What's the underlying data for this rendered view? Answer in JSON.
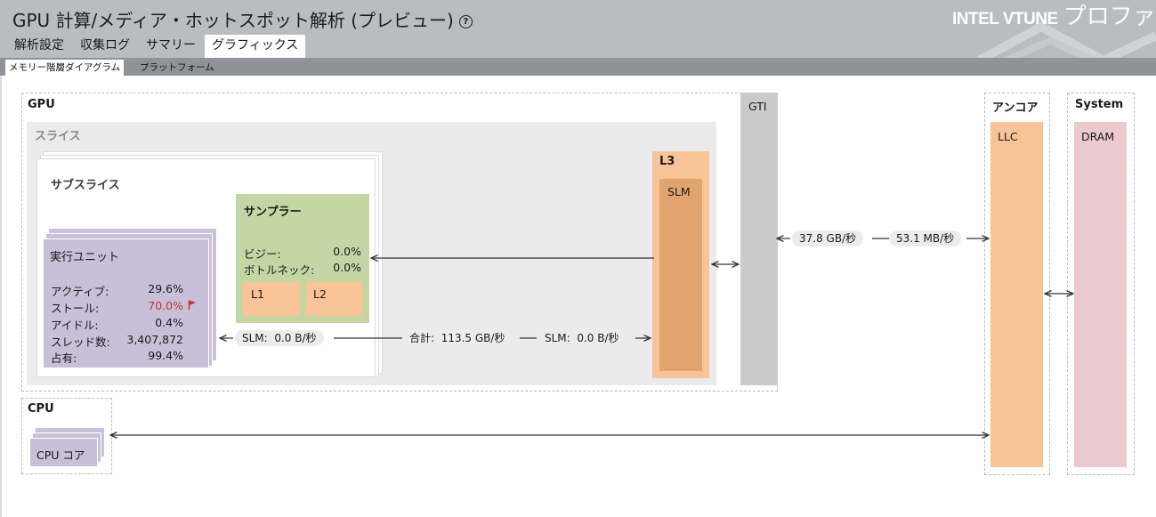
{
  "header": {
    "title": "GPU 計算/メディア・ホットスポット解析 (プレビュー)",
    "brand_main": "INTEL VTUNE",
    "brand_sub": "プロファイ",
    "tabs": [
      {
        "label": "解析設定",
        "active": false
      },
      {
        "label": "収集ログ",
        "active": false
      },
      {
        "label": "サマリー",
        "active": false
      },
      {
        "label": "グラフィックス",
        "active": true
      }
    ],
    "subtabs": [
      {
        "label": "メモリー階層ダイアグラム",
        "active": true
      },
      {
        "label": "プラットフォーム",
        "active": false
      }
    ]
  },
  "diagram": {
    "gpu_label": "GPU",
    "slice_label": "スライス",
    "subslice_label": "サブスライス",
    "eu": {
      "title": "実行ユニット",
      "rows": [
        {
          "label": "アクティブ:",
          "value": "29.6%"
        },
        {
          "label": "ストール:",
          "value": "70.0%",
          "flag": true
        },
        {
          "label": "アイドル:",
          "value": "0.4%"
        },
        {
          "label": "スレッド数:",
          "value": "3,407,872"
        },
        {
          "label": "占有:",
          "value": "99.4%"
        }
      ]
    },
    "sampler": {
      "title": "サンプラー",
      "rows": [
        {
          "label": "ビジー:",
          "value": "0.0%"
        },
        {
          "label": "ボトルネック:",
          "value": "0.0%"
        }
      ],
      "l1": "L1",
      "l2": "L2"
    },
    "l3_label": "L3",
    "slm_label": "SLM",
    "gti_label": "GTI",
    "uncore_label": "アンコア",
    "llc_label": "LLC",
    "system_label": "System",
    "dram_label": "DRAM",
    "cpu_label": "CPU",
    "cpu_core_label": "CPU コア",
    "bandwidth": {
      "eu_slm_label": "SLM:",
      "eu_slm_value": "0.0 B/秒",
      "total_label": "合計:",
      "total_value": "113.5 GB/秒",
      "l3_slm_label": "SLM:",
      "l3_slm_value": "0.0 B/秒",
      "gti_read": "37.8 GB/秒",
      "gti_write": "53.1 MB/秒"
    }
  },
  "colors": {
    "header_bg": "#b9bdc3",
    "eu": "#c8bfd9",
    "sampler": "#c5d6a5",
    "l3": "#f8c497",
    "slm": "#e1a46e",
    "dram": "#ecc9cc",
    "stall_alert": "#c0392b"
  }
}
